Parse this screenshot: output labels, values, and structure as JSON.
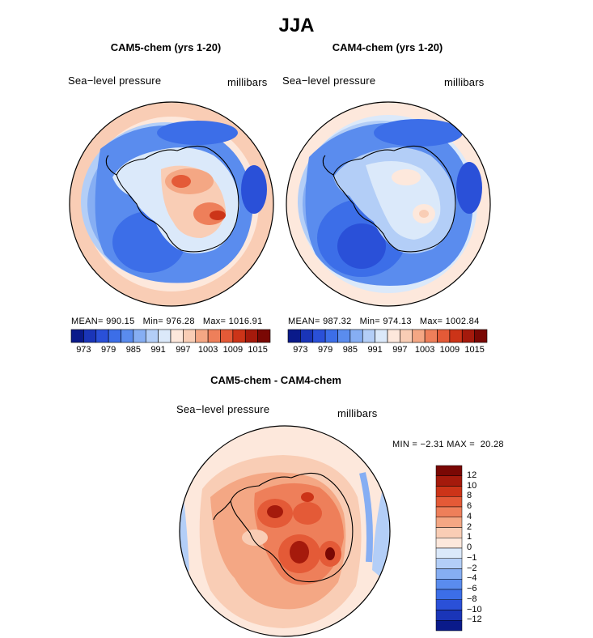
{
  "chart_data": [
    {
      "type": "heatmap",
      "projection": "south-polar stereographic",
      "season": "JJA",
      "title": "CAM5-chem (yrs 1-20)",
      "variable": "Sea−level pressure",
      "units": "millibars",
      "mean_label": "MEAN=",
      "mean": "990.15",
      "min_label": "Min=",
      "min": "976.28",
      "max_label": "Max=",
      "max": "1016.91",
      "colorbar_ticks": [
        "973",
        "979",
        "985",
        "991",
        "997",
        "1003",
        "1009",
        "1015"
      ]
    },
    {
      "type": "heatmap",
      "projection": "south-polar stereographic",
      "season": "JJA",
      "title": "CAM4-chem (yrs 1-20)",
      "variable": "Sea−level pressure",
      "units": "millibars",
      "mean_label": "MEAN=",
      "mean": "987.32",
      "min_label": "Min=",
      "min": "974.13",
      "max_label": "Max=",
      "max": "1002.84",
      "colorbar_ticks": [
        "973",
        "979",
        "985",
        "991",
        "997",
        "1003",
        "1009",
        "1015"
      ]
    },
    {
      "type": "heatmap",
      "projection": "south-polar stereographic",
      "season": "JJA",
      "title": "CAM5-chem - CAM4-chem",
      "variable": "Sea−level pressure",
      "units": "millibars",
      "min_label": "MIN =",
      "min": "−2.31",
      "max_label": "MAX =",
      "max": "20.28",
      "colorbar_ticks": [
        "12",
        "10",
        "8",
        "6",
        "4",
        "2",
        "1",
        "0",
        "−1",
        "−2",
        "−4",
        "−6",
        "−8",
        "−10",
        "−12"
      ]
    }
  ],
  "figure_title": "JJA",
  "colors": {
    "absolute_scale": [
      "#0a1a8a",
      "#1a35b8",
      "#2a50d8",
      "#3c6ee8",
      "#5a8cee",
      "#86aef3",
      "#b3cef7",
      "#dbe9fa",
      "#fde8dc",
      "#f9cdb5",
      "#f4a784",
      "#ee7f5a",
      "#e45a37",
      "#cc3418",
      "#a51a0c",
      "#7a0804"
    ],
    "difference_scale": [
      "#7a0804",
      "#a51a0c",
      "#cc3418",
      "#e45a37",
      "#ee7f5a",
      "#f4a784",
      "#f9cdb5",
      "#fde8dc",
      "#dbe9fa",
      "#b3cef7",
      "#86aef3",
      "#5a8cee",
      "#3c6ee8",
      "#2a50d8",
      "#1a35b8",
      "#0a1a8a"
    ]
  }
}
